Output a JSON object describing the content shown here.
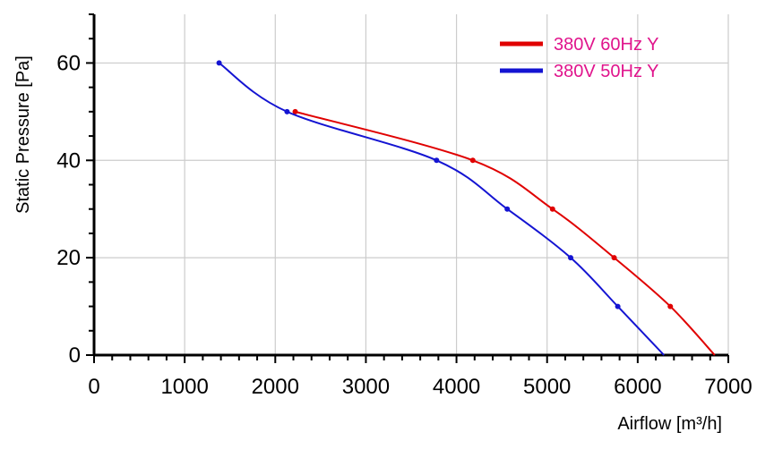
{
  "chart_data": {
    "type": "line",
    "xlabel": "Airflow [m³/h]",
    "ylabel": "Static Pressure [Pa]",
    "xlim": [
      0,
      7000
    ],
    "ylim": [
      0,
      70
    ],
    "x_ticks": [
      0,
      1000,
      2000,
      3000,
      4000,
      5000,
      6000,
      7000
    ],
    "y_ticks": [
      0,
      20,
      40,
      60
    ],
    "grid": true,
    "legend_position": "top-right",
    "legend_text_color": "#e0148c",
    "series": [
      {
        "name": "380V 60Hz Y",
        "color": "#e00000",
        "x": [
          2220,
          4180,
          5060,
          5740,
          6360,
          6850
        ],
        "y": [
          50,
          40,
          30,
          20,
          10,
          0
        ]
      },
      {
        "name": "380V 50Hz Y",
        "color": "#1414d2",
        "x": [
          1380,
          2130,
          3780,
          4560,
          5260,
          5780,
          6290
        ],
        "y": [
          60,
          50,
          40,
          30,
          20,
          10,
          0
        ]
      }
    ]
  }
}
